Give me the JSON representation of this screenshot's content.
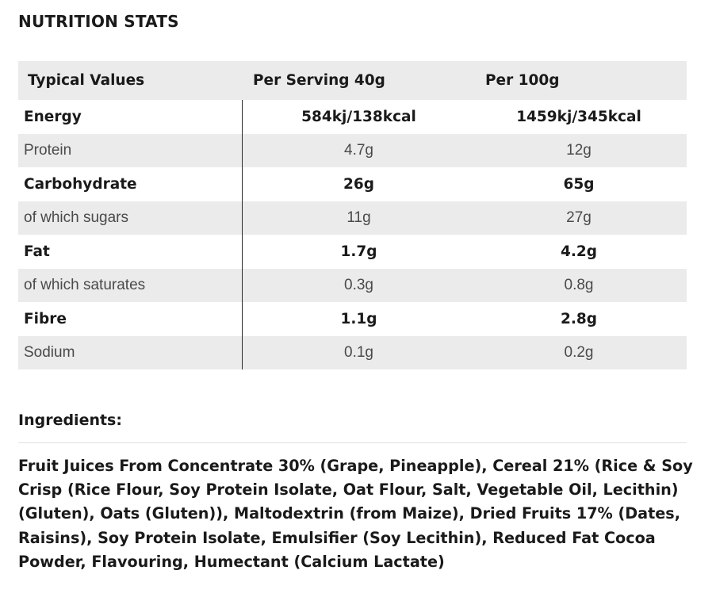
{
  "title": "NUTRITION STATS",
  "table": {
    "headers": [
      "Typical Values",
      "Per Serving 40g",
      "Per 100g"
    ],
    "rows": [
      {
        "label": "Energy",
        "serving": "584kj/138kcal",
        "per100": "1459kj/345kcal",
        "bold": true
      },
      {
        "label": "Protein",
        "serving": "4.7g",
        "per100": "12g",
        "bold": false
      },
      {
        "label": "Carbohydrate",
        "serving": "26g",
        "per100": "65g",
        "bold": true
      },
      {
        "label": "of which sugars",
        "serving": "11g",
        "per100": "27g",
        "bold": false
      },
      {
        "label": "Fat",
        "serving": "1.7g",
        "per100": "4.2g",
        "bold": true
      },
      {
        "label": "of which saturates",
        "serving": "0.3g",
        "per100": "0.8g",
        "bold": false
      },
      {
        "label": "Fibre",
        "serving": "1.1g",
        "per100": "2.8g",
        "bold": true
      },
      {
        "label": "Sodium",
        "serving": "0.1g",
        "per100": "0.2g",
        "bold": false
      }
    ]
  },
  "ingredients": {
    "title": "Ingredients:",
    "text": "Fruit Juices From Concentrate 30% (Grape, Pineapple), Cereal 21% (Rice & Soy Crisp (Rice Flour, Soy Protein Isolate, Oat Flour, Salt, Vegetable Oil, Lecithin) (Gluten), Oats (Gluten)), Maltodextrin (from Maize), Dried Fruits 17% (Dates, Raisins), Soy Protein Isolate, Emulsifier (Soy Lecithin), Reduced Fat Cocoa Powder, Flavouring, Humectant (Calcium Lactate)"
  },
  "colors": {
    "stripe": "#ebebeb",
    "text": "#1a1a1a",
    "muted_text": "#4a4a4a",
    "column_rule": "#2a2a2a"
  }
}
